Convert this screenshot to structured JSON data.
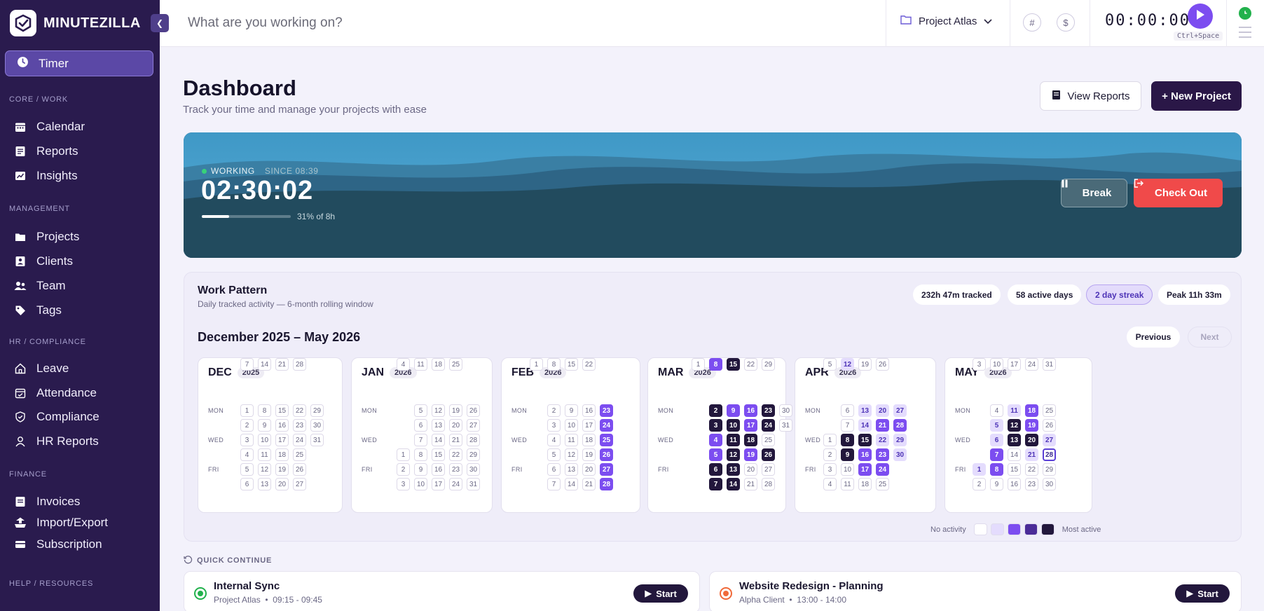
{
  "app": {
    "logo_text": "MINUTEZILLA"
  },
  "sidebar": {
    "timer_label": "Timer",
    "sections": [
      {
        "title": "CORE / WORK",
        "items": [
          {
            "label": "Calendar",
            "icon": "calendar-icon"
          },
          {
            "label": "Reports",
            "icon": "reports-icon"
          },
          {
            "label": "Insights",
            "icon": "insights-icon"
          }
        ]
      },
      {
        "title": "MANAGEMENT",
        "items": [
          {
            "label": "Projects",
            "icon": "folder-icon"
          },
          {
            "label": "Clients",
            "icon": "client-icon"
          },
          {
            "label": "Team",
            "icon": "team-icon"
          },
          {
            "label": "Tags",
            "icon": "tag-icon"
          }
        ]
      },
      {
        "title": "HR / COMPLIANCE",
        "items": [
          {
            "label": "Leave",
            "icon": "home-icon"
          },
          {
            "label": "Attendance",
            "icon": "attendance-icon"
          },
          {
            "label": "Compliance",
            "icon": "shield-icon"
          },
          {
            "label": "HR Reports",
            "icon": "user-icon"
          }
        ]
      },
      {
        "title": "FINANCE",
        "items": [
          {
            "label": "Invoices",
            "icon": "invoice-icon"
          },
          {
            "label": "Import/Export",
            "icon": "import-export-icon"
          },
          {
            "label": "Subscription",
            "icon": "card-icon"
          }
        ]
      },
      {
        "title": "HELP / RESOURCES",
        "items": []
      }
    ]
  },
  "topbar": {
    "task_placeholder": "What are you working on?",
    "project": "Project Atlas",
    "tag_symbol": "#",
    "billable_symbol": "$",
    "timer": "00:00:00",
    "shortcut": "Ctrl+Space"
  },
  "page": {
    "title": "Dashboard",
    "subtitle": "Track your time and manage your projects with ease",
    "view_reports": "View Reports",
    "new_project": "+ New Project"
  },
  "hero": {
    "state": "WORKING",
    "since": "SINCE 08:39",
    "elapsed": "02:30:02",
    "progress_percent": 31,
    "progress_text": "31% of 8h",
    "break_label": "Break",
    "checkout_label": "Check Out"
  },
  "work_pattern": {
    "title": "Work Pattern",
    "subtitle": "Daily tracked activity — 6-month rolling window",
    "stats": [
      "232h 47m tracked",
      "58 active days",
      "2 day streak",
      "Peak 11h 33m"
    ],
    "range": "December 2025 – May 2026",
    "previous": "Previous",
    "next": "Next",
    "day_labels": [
      "MON",
      "WED",
      "FRI"
    ],
    "legend_low": "No activity",
    "legend_high": "Most active",
    "legend_colors": [
      "#ffffff",
      "#e4dcfd",
      "#7c4df0",
      "#4b2c98",
      "#22173c"
    ],
    "months": [
      {
        "name": "DEC",
        "year": "2025",
        "weeks": [
          [
            null,
            1,
            2,
            3,
            4,
            5,
            6,
            7
          ],
          [
            null,
            8,
            9,
            10,
            11,
            12,
            13,
            14
          ],
          [
            null,
            15,
            16,
            17,
            18,
            19,
            20,
            21
          ],
          [
            null,
            22,
            23,
            24,
            25,
            26,
            27,
            28
          ],
          [
            null,
            29,
            30,
            31,
            null,
            null,
            null,
            null
          ]
        ],
        "levels": {}
      },
      {
        "name": "JAN",
        "year": "2026",
        "weeks": [
          [
            null,
            null,
            null,
            null,
            1,
            2,
            3,
            4
          ],
          [
            null,
            5,
            6,
            7,
            8,
            9,
            10,
            11
          ],
          [
            null,
            12,
            13,
            14,
            15,
            16,
            17,
            18
          ],
          [
            null,
            19,
            20,
            21,
            22,
            23,
            24,
            25
          ],
          [
            null,
            26,
            27,
            28,
            29,
            30,
            31,
            null
          ]
        ],
        "levels": {}
      },
      {
        "name": "FEB",
        "year": "2026",
        "weeks": [
          [
            null,
            null,
            null,
            null,
            null,
            null,
            null,
            1
          ],
          [
            null,
            2,
            3,
            4,
            5,
            6,
            7,
            8
          ],
          [
            null,
            9,
            10,
            11,
            12,
            13,
            14,
            15
          ],
          [
            null,
            16,
            17,
            18,
            19,
            20,
            21,
            22
          ],
          [
            null,
            23,
            24,
            25,
            26,
            27,
            28,
            null
          ]
        ],
        "levels": {
          "23": 2,
          "24": 2,
          "25": 2,
          "26": 2,
          "27": 2,
          "28": 2
        }
      },
      {
        "name": "MAR",
        "year": "2026",
        "weeks": [
          [
            null,
            null,
            null,
            null,
            null,
            null,
            null,
            1
          ],
          [
            null,
            2,
            3,
            4,
            5,
            6,
            7,
            8
          ],
          [
            null,
            9,
            10,
            11,
            12,
            13,
            14,
            15
          ],
          [
            null,
            16,
            17,
            18,
            19,
            20,
            21,
            22
          ],
          [
            null,
            23,
            24,
            25,
            26,
            27,
            28,
            29
          ],
          [
            null,
            30,
            31,
            null,
            null,
            null,
            null,
            null
          ]
        ],
        "levels": {
          "2": 4,
          "3": 4,
          "4": 2,
          "5": 2,
          "6": 4,
          "7": 4,
          "8": 2,
          "9": 2,
          "10": 4,
          "11": 4,
          "12": 4,
          "13": 4,
          "14": 4,
          "15": 4,
          "16": 2,
          "17": 2,
          "18": 4,
          "19": 2,
          "23": 4,
          "24": 4,
          "26": 4
        }
      },
      {
        "name": "APR",
        "year": "2026",
        "weeks": [
          [
            null,
            null,
            null,
            1,
            2,
            3,
            4,
            5
          ],
          [
            null,
            6,
            7,
            8,
            9,
            10,
            11,
            12
          ],
          [
            null,
            13,
            14,
            15,
            16,
            17,
            18,
            19
          ],
          [
            null,
            20,
            21,
            22,
            23,
            24,
            25,
            26
          ],
          [
            null,
            27,
            28,
            29,
            30,
            null,
            null,
            null
          ]
        ],
        "levels": {
          "8": 4,
          "9": 4,
          "12": 1,
          "13": 1,
          "14": 1,
          "15": 4,
          "16": 2,
          "17": 2,
          "20": 1,
          "21": 2,
          "22": 1,
          "23": 2,
          "24": 2,
          "27": 1,
          "28": 2,
          "29": 1,
          "30": 1
        }
      },
      {
        "name": "MAY",
        "year": "2026",
        "weeks": [
          [
            null,
            null,
            null,
            null,
            null,
            1,
            2,
            3
          ],
          [
            null,
            4,
            5,
            6,
            7,
            8,
            9,
            10
          ],
          [
            null,
            11,
            12,
            13,
            14,
            15,
            16,
            17
          ],
          [
            null,
            18,
            19,
            20,
            21,
            22,
            23,
            24
          ],
          [
            null,
            25,
            26,
            27,
            28,
            29,
            30,
            31
          ]
        ],
        "levels": {
          "1": 1,
          "5": 1,
          "6": 1,
          "7": 2,
          "8": 2,
          "11": 1,
          "12": 4,
          "13": 4,
          "18": 2,
          "19": 2,
          "20": 4,
          "21": 1,
          "27": 1
        },
        "today": 28
      }
    ]
  },
  "quick_continue": {
    "label": "QUICK CONTINUE",
    "items": [
      {
        "name": "Internal Sync",
        "project": "Project Atlas",
        "time": "09:15 - 09:45",
        "start": "Start",
        "color": "#22b14c"
      },
      {
        "name": "Website Redesign - Planning",
        "project": "Alpha Client",
        "time": "13:00 - 14:00",
        "start": "Start",
        "color": "#f06a3a"
      }
    ]
  }
}
